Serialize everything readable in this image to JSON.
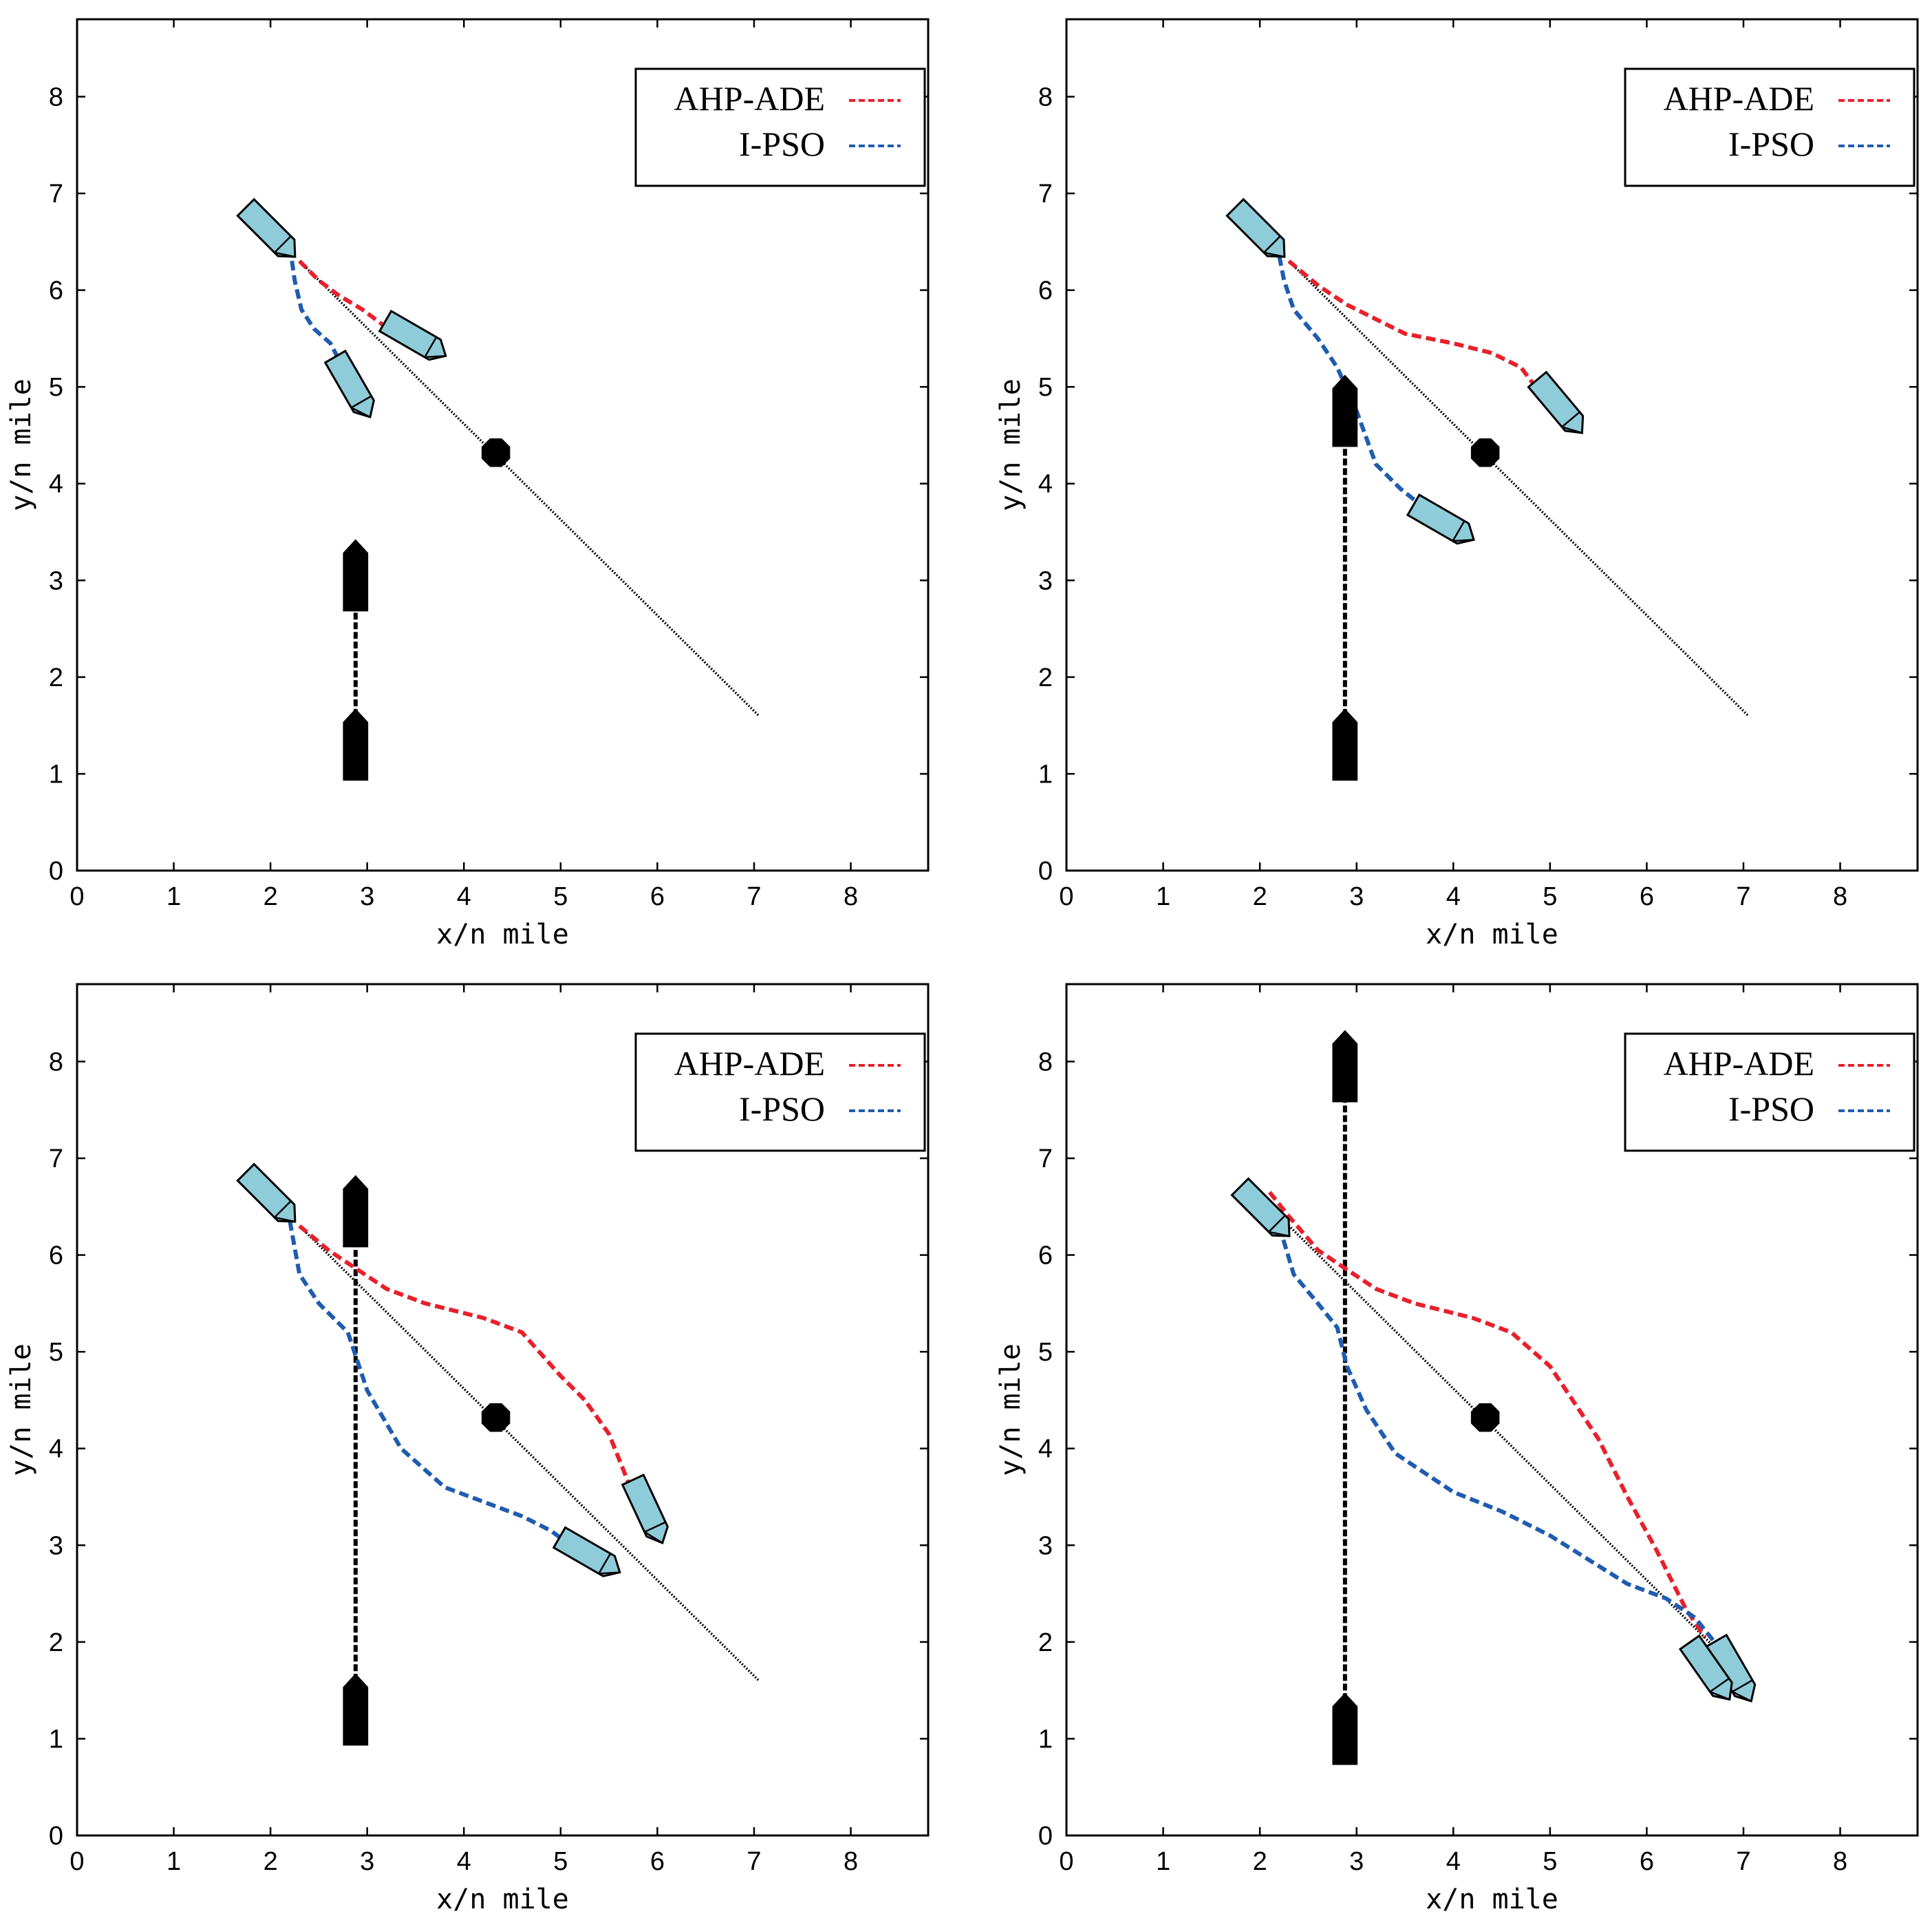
{
  "chart_data": [
    {
      "type": "line",
      "panel": "top-left",
      "xlabel": "x/n mile",
      "ylabel": "y/n mile",
      "xlim": [
        0,
        8.8
      ],
      "ylim": [
        0,
        8.8
      ],
      "xticks": [
        0,
        1,
        2,
        3,
        4,
        5,
        6,
        7,
        8
      ],
      "yticks": [
        0,
        1,
        2,
        3,
        4,
        5,
        6,
        7,
        8
      ],
      "legend_position": "top-right",
      "series": [
        {
          "name": "AHP-ADE",
          "color": "#e8202a",
          "x": [
            2.3,
            2.5,
            2.7,
            2.95,
            3.15,
            3.4
          ],
          "y": [
            6.3,
            6.1,
            5.95,
            5.8,
            5.65,
            5.55
          ]
        },
        {
          "name": "I-PSO",
          "color": "#1f5cb0",
          "x": [
            2.2,
            2.25,
            2.32,
            2.45,
            2.62,
            2.8
          ],
          "y": [
            6.45,
            6.1,
            5.8,
            5.6,
            5.45,
            5.1
          ]
        }
      ],
      "reference_line": {
        "x": [
          2.3,
          7.05
        ],
        "y": [
          6.3,
          1.6
        ]
      },
      "obstacle": {
        "x": 4.33,
        "y": 4.32
      },
      "target_ship_track": {
        "x": [
          2.88,
          2.88
        ],
        "y": [
          1.3,
          3.05
        ]
      },
      "own_ship_start": {
        "x": 2.0,
        "y": 6.6,
        "heading": 135
      },
      "ships_end": [
        {
          "series": "AHP-ADE",
          "x": 3.5,
          "y": 5.5,
          "heading": 120
        },
        {
          "series": "I-PSO",
          "x": 2.85,
          "y": 5.0,
          "heading": 150
        }
      ],
      "target_ships": [
        {
          "x": 2.88,
          "y": 1.3
        },
        {
          "x": 2.88,
          "y": 3.05
        }
      ]
    },
    {
      "type": "line",
      "panel": "top-right",
      "xlabel": "x/n mile",
      "ylabel": "y/n mile",
      "xlim": [
        0,
        8.8
      ],
      "ylim": [
        0,
        8.8
      ],
      "xticks": [
        0,
        1,
        2,
        3,
        4,
        5,
        6,
        7,
        8
      ],
      "yticks": [
        0,
        1,
        2,
        3,
        4,
        5,
        6,
        7,
        8
      ],
      "legend_position": "top-right",
      "series": [
        {
          "name": "AHP-ADE",
          "color": "#e8202a",
          "x": [
            2.3,
            2.6,
            2.9,
            3.2,
            3.5,
            4.0,
            4.4,
            4.7,
            4.85
          ],
          "y": [
            6.3,
            6.05,
            5.85,
            5.7,
            5.55,
            5.45,
            5.35,
            5.2,
            5.0
          ]
        },
        {
          "name": "I-PSO",
          "color": "#1f5cb0",
          "x": [
            2.2,
            2.25,
            2.35,
            2.6,
            2.8,
            3.0,
            3.2,
            3.45,
            3.7
          ],
          "y": [
            6.35,
            6.1,
            5.8,
            5.5,
            5.2,
            4.75,
            4.2,
            3.95,
            3.75
          ]
        }
      ],
      "reference_line": {
        "x": [
          2.3,
          7.05
        ],
        "y": [
          6.3,
          1.6
        ]
      },
      "obstacle": {
        "x": 4.33,
        "y": 4.32
      },
      "target_ship_track": {
        "x": [
          2.88,
          2.88
        ],
        "y": [
          1.3,
          4.75
        ]
      },
      "own_ship_start": {
        "x": 2.0,
        "y": 6.6,
        "heading": 135
      },
      "ships_end": [
        {
          "series": "AHP-ADE",
          "x": 5.1,
          "y": 4.8,
          "heading": 140
        },
        {
          "series": "I-PSO",
          "x": 3.9,
          "y": 3.6,
          "heading": 120
        }
      ],
      "target_ships": [
        {
          "x": 2.88,
          "y": 1.3
        },
        {
          "x": 2.88,
          "y": 4.75
        }
      ]
    },
    {
      "type": "line",
      "panel": "bottom-left",
      "xlabel": "x/n mile",
      "ylabel": "y/n mile",
      "xlim": [
        0,
        8.8
      ],
      "ylim": [
        0,
        8.8
      ],
      "xticks": [
        0,
        1,
        2,
        3,
        4,
        5,
        6,
        7,
        8
      ],
      "yticks": [
        0,
        1,
        2,
        3,
        4,
        5,
        6,
        7,
        8
      ],
      "legend_position": "top-right",
      "series": [
        {
          "name": "AHP-ADE",
          "color": "#e8202a",
          "x": [
            2.3,
            2.6,
            2.9,
            3.2,
            3.6,
            4.2,
            4.6,
            5.0,
            5.25,
            5.5,
            5.6,
            5.7
          ],
          "y": [
            6.3,
            6.05,
            5.85,
            5.65,
            5.5,
            5.35,
            5.2,
            4.75,
            4.5,
            4.15,
            3.9,
            3.65
          ]
        },
        {
          "name": "I-PSO",
          "color": "#1f5cb0",
          "x": [
            2.2,
            2.3,
            2.5,
            2.8,
            3.0,
            3.35,
            3.8,
            4.2,
            4.6,
            4.9,
            5.1
          ],
          "y": [
            6.35,
            5.8,
            5.5,
            5.2,
            4.6,
            4.0,
            3.6,
            3.45,
            3.3,
            3.15,
            3.0
          ]
        }
      ],
      "reference_line": {
        "x": [
          2.3,
          7.05
        ],
        "y": [
          6.3,
          1.6
        ]
      },
      "obstacle": {
        "x": 4.33,
        "y": 4.32
      },
      "target_ship_track": {
        "x": [
          2.88,
          2.88
        ],
        "y": [
          1.3,
          6.45
        ]
      },
      "own_ship_start": {
        "x": 2.0,
        "y": 6.6,
        "heading": 135
      },
      "ships_end": [
        {
          "series": "AHP-ADE",
          "x": 5.9,
          "y": 3.35,
          "heading": 155
        },
        {
          "series": "I-PSO",
          "x": 5.3,
          "y": 2.9,
          "heading": 120
        }
      ],
      "target_ships": [
        {
          "x": 2.88,
          "y": 1.3
        },
        {
          "x": 2.88,
          "y": 6.45
        }
      ]
    },
    {
      "type": "line",
      "panel": "bottom-right",
      "xlabel": "x/n mile",
      "ylabel": "y/n mile",
      "xlim": [
        0,
        8.8
      ],
      "ylim": [
        0,
        8.8
      ],
      "xticks": [
        0,
        1,
        2,
        3,
        4,
        5,
        6,
        7,
        8
      ],
      "yticks": [
        0,
        1,
        2,
        3,
        4,
        5,
        6,
        7,
        8
      ],
      "legend_position": "top-right",
      "series": [
        {
          "name": "AHP-ADE",
          "color": "#e8202a",
          "x": [
            2.1,
            2.3,
            2.6,
            2.9,
            3.2,
            3.6,
            4.2,
            4.6,
            5.0,
            5.2,
            5.5,
            5.8,
            6.1,
            6.4,
            6.6
          ],
          "y": [
            6.65,
            6.4,
            6.05,
            5.85,
            5.65,
            5.5,
            5.35,
            5.2,
            4.85,
            4.55,
            4.1,
            3.5,
            2.95,
            2.35,
            2.05
          ]
        },
        {
          "name": "I-PSO",
          "color": "#1f5cb0",
          "x": [
            2.2,
            2.35,
            2.6,
            2.8,
            2.9,
            3.1,
            3.4,
            4.0,
            4.5,
            5.0,
            5.4,
            5.8,
            6.2,
            6.5,
            6.7
          ],
          "y": [
            6.3,
            5.8,
            5.5,
            5.25,
            4.85,
            4.4,
            3.95,
            3.55,
            3.35,
            3.1,
            2.85,
            2.6,
            2.45,
            2.25,
            2.0
          ]
        }
      ],
      "reference_line": {
        "x": [
          2.0,
          7.05
        ],
        "y": [
          6.6,
          1.6
        ]
      },
      "obstacle": {
        "x": 4.33,
        "y": 4.32
      },
      "target_ship_track": {
        "x": [
          2.88,
          2.88
        ],
        "y": [
          1.1,
          7.95
        ]
      },
      "own_ship_start": {
        "x": 2.05,
        "y": 6.45,
        "heading": 135
      },
      "ships_end": [
        {
          "series": "AHP-ADE",
          "x": 6.9,
          "y": 1.7,
          "heading": 150
        },
        {
          "series": "I-PSO",
          "x": 6.65,
          "y": 1.7,
          "heading": 145
        }
      ],
      "target_ships": [
        {
          "x": 2.88,
          "y": 1.1
        },
        {
          "x": 2.88,
          "y": 7.95
        }
      ]
    }
  ],
  "colors": {
    "ship_fill": "#8fccda",
    "target_fill": "#000000",
    "reference_line": "#000000"
  }
}
